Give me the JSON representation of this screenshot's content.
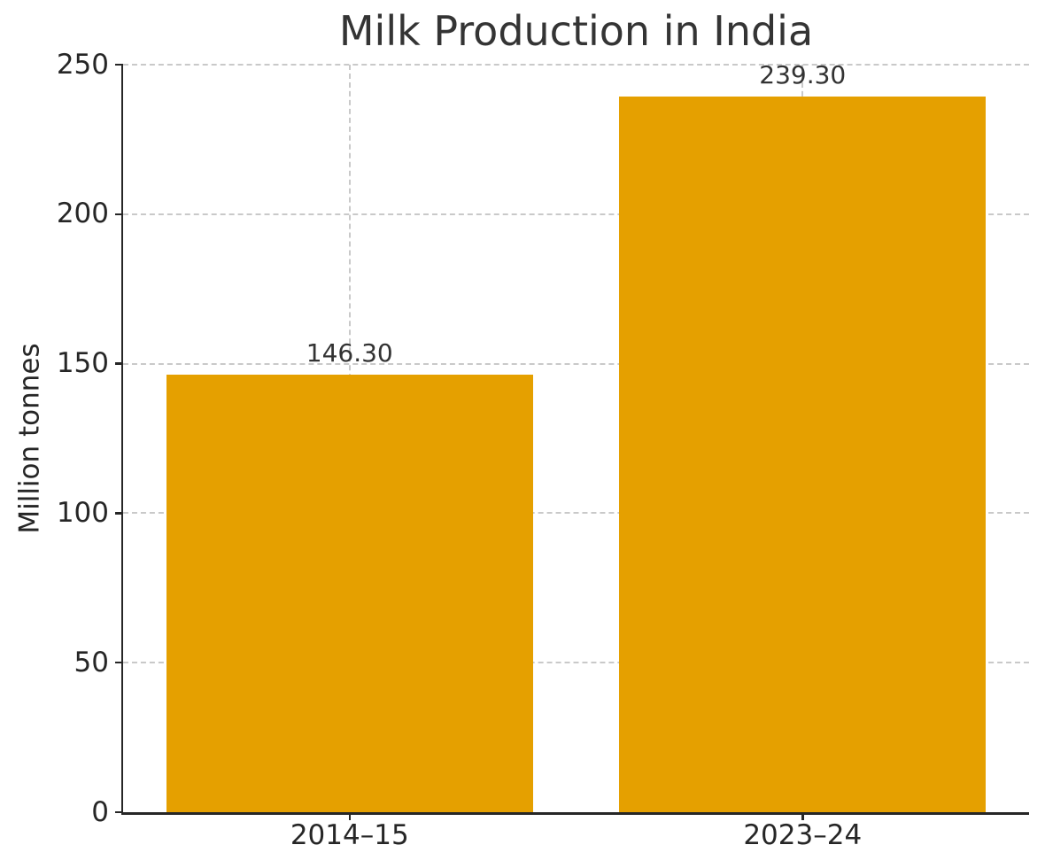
{
  "chart_data": {
    "type": "bar",
    "title": "Milk Production in India",
    "xlabel": "",
    "ylabel": "Million tonnes",
    "categories": [
      "2014–15",
      "2023–24"
    ],
    "values": [
      146.3,
      239.3
    ],
    "value_labels": [
      "146.30",
      "239.30"
    ],
    "ylim": [
      0,
      250
    ],
    "yticks": [
      0,
      50,
      100,
      150,
      200,
      250
    ],
    "bar_color": "#e5a000",
    "grid": true,
    "grid_axis": "both",
    "grid_style": "dashed",
    "grid_color": "#c9c9c9",
    "spine_color": "#262626",
    "legend": false,
    "background": "#ffffff"
  }
}
